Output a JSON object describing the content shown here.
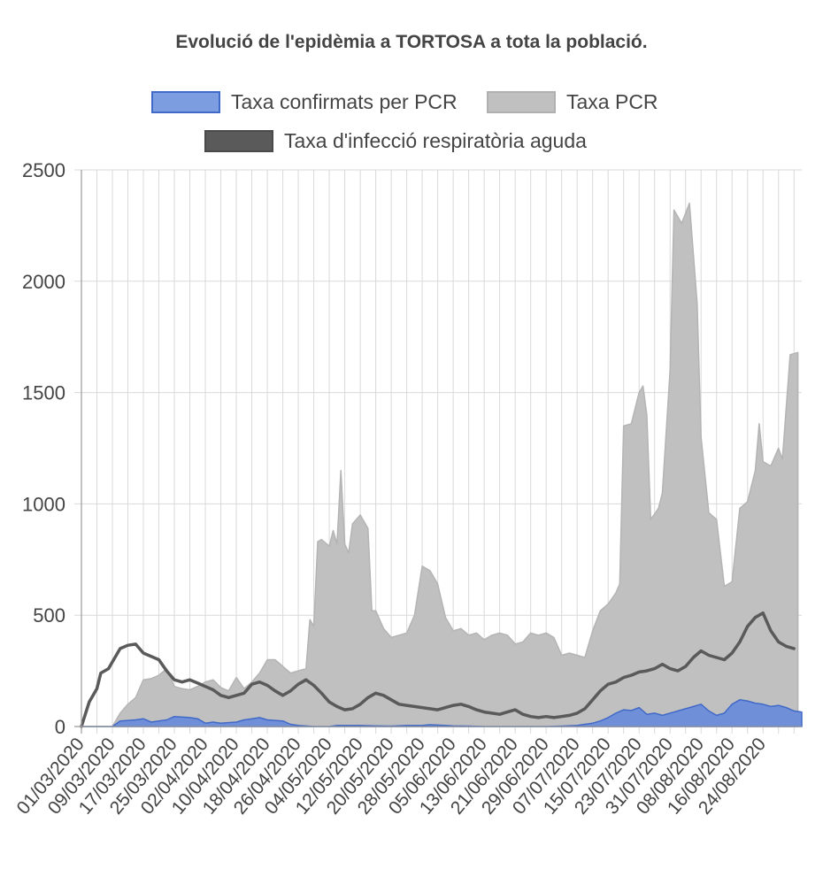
{
  "chart_data": {
    "type": "area",
    "title": "Evolució de l'epidèmia a TORTOSA a tota la població.",
    "xlabel": "",
    "ylabel": "",
    "ylim": [
      0,
      2500
    ],
    "y_ticks": [
      0,
      500,
      1000,
      1500,
      2000,
      2500
    ],
    "grid": true,
    "legend_position": "top",
    "x_tick_labels": [
      "01/03/2020",
      "09/03/2020",
      "17/03/2020",
      "25/03/2020",
      "02/04/2020",
      "10/04/2020",
      "18/04/2020",
      "26/04/2020",
      "04/05/2020",
      "12/05/2020",
      "20/05/2020",
      "28/05/2020",
      "05/06/2020",
      "13/06/2020",
      "21/06/2020",
      "29/06/2020",
      "07/07/2020",
      "15/07/2020",
      "23/07/2020",
      "31/07/2020",
      "08/08/2020",
      "16/08/2020",
      "24/08/2020"
    ],
    "x_tick_index": [
      0,
      8,
      16,
      24,
      32,
      40,
      48,
      56,
      64,
      72,
      80,
      88,
      96,
      104,
      112,
      120,
      128,
      136,
      144,
      152,
      160,
      168,
      176
    ],
    "series": [
      {
        "name": "Taxa confirmats per PCR",
        "color": "#4169c8",
        "fill": "#6f8fd8",
        "points": [
          [
            0,
            0
          ],
          [
            8,
            0
          ],
          [
            10,
            25
          ],
          [
            14,
            30
          ],
          [
            16,
            35
          ],
          [
            18,
            20
          ],
          [
            22,
            30
          ],
          [
            24,
            45
          ],
          [
            28,
            40
          ],
          [
            30,
            35
          ],
          [
            32,
            15
          ],
          [
            34,
            20
          ],
          [
            36,
            15
          ],
          [
            40,
            20
          ],
          [
            42,
            30
          ],
          [
            44,
            35
          ],
          [
            46,
            40
          ],
          [
            48,
            30
          ],
          [
            52,
            25
          ],
          [
            54,
            10
          ],
          [
            56,
            5
          ],
          [
            60,
            0
          ],
          [
            64,
            0
          ],
          [
            66,
            5
          ],
          [
            70,
            5
          ],
          [
            72,
            5
          ],
          [
            76,
            3
          ],
          [
            80,
            2
          ],
          [
            84,
            5
          ],
          [
            88,
            5
          ],
          [
            90,
            8
          ],
          [
            94,
            5
          ],
          [
            96,
            3
          ],
          [
            100,
            2
          ],
          [
            104,
            0
          ],
          [
            112,
            0
          ],
          [
            120,
            0
          ],
          [
            124,
            2
          ],
          [
            128,
            5
          ],
          [
            132,
            15
          ],
          [
            134,
            25
          ],
          [
            136,
            40
          ],
          [
            138,
            60
          ],
          [
            140,
            75
          ],
          [
            142,
            72
          ],
          [
            144,
            85
          ],
          [
            146,
            55
          ],
          [
            148,
            60
          ],
          [
            150,
            50
          ],
          [
            152,
            60
          ],
          [
            154,
            70
          ],
          [
            156,
            80
          ],
          [
            158,
            90
          ],
          [
            160,
            100
          ],
          [
            162,
            70
          ],
          [
            164,
            50
          ],
          [
            166,
            60
          ],
          [
            168,
            100
          ],
          [
            170,
            120
          ],
          [
            172,
            115
          ],
          [
            174,
            105
          ],
          [
            176,
            100
          ],
          [
            178,
            90
          ],
          [
            180,
            95
          ],
          [
            182,
            85
          ],
          [
            184,
            70
          ],
          [
            186,
            65
          ]
        ]
      },
      {
        "name": "Taxa PCR",
        "color": "#b4b4b4",
        "fill": "#c0c0c0",
        "points": [
          [
            0,
            0
          ],
          [
            8,
            0
          ],
          [
            10,
            60
          ],
          [
            12,
            100
          ],
          [
            14,
            130
          ],
          [
            16,
            210
          ],
          [
            18,
            215
          ],
          [
            20,
            230
          ],
          [
            22,
            260
          ],
          [
            24,
            180
          ],
          [
            26,
            170
          ],
          [
            28,
            165
          ],
          [
            30,
            180
          ],
          [
            32,
            200
          ],
          [
            34,
            210
          ],
          [
            36,
            175
          ],
          [
            38,
            160
          ],
          [
            40,
            220
          ],
          [
            42,
            170
          ],
          [
            44,
            200
          ],
          [
            46,
            240
          ],
          [
            48,
            300
          ],
          [
            50,
            300
          ],
          [
            52,
            270
          ],
          [
            54,
            240
          ],
          [
            56,
            250
          ],
          [
            58,
            260
          ],
          [
            59,
            480
          ],
          [
            60,
            450
          ],
          [
            61,
            830
          ],
          [
            62,
            840
          ],
          [
            64,
            810
          ],
          [
            65,
            880
          ],
          [
            66,
            820
          ],
          [
            67,
            1150
          ],
          [
            68,
            820
          ],
          [
            69,
            780
          ],
          [
            70,
            910
          ],
          [
            72,
            950
          ],
          [
            74,
            890
          ],
          [
            75,
            520
          ],
          [
            76,
            520
          ],
          [
            78,
            440
          ],
          [
            80,
            400
          ],
          [
            82,
            410
          ],
          [
            84,
            420
          ],
          [
            86,
            500
          ],
          [
            88,
            720
          ],
          [
            90,
            700
          ],
          [
            92,
            640
          ],
          [
            94,
            490
          ],
          [
            96,
            430
          ],
          [
            98,
            440
          ],
          [
            100,
            410
          ],
          [
            102,
            420
          ],
          [
            104,
            390
          ],
          [
            106,
            410
          ],
          [
            108,
            420
          ],
          [
            110,
            410
          ],
          [
            112,
            370
          ],
          [
            114,
            380
          ],
          [
            116,
            420
          ],
          [
            118,
            410
          ],
          [
            120,
            420
          ],
          [
            122,
            400
          ],
          [
            124,
            320
          ],
          [
            126,
            330
          ],
          [
            128,
            320
          ],
          [
            130,
            310
          ],
          [
            132,
            430
          ],
          [
            134,
            520
          ],
          [
            136,
            550
          ],
          [
            138,
            600
          ],
          [
            139,
            640
          ],
          [
            140,
            1350
          ],
          [
            142,
            1360
          ],
          [
            144,
            1500
          ],
          [
            145,
            1530
          ],
          [
            146,
            1400
          ],
          [
            147,
            930
          ],
          [
            149,
            980
          ],
          [
            150,
            1050
          ],
          [
            152,
            1600
          ],
          [
            153,
            2320
          ],
          [
            155,
            2260
          ],
          [
            157,
            2350
          ],
          [
            159,
            1900
          ],
          [
            160,
            1300
          ],
          [
            162,
            960
          ],
          [
            164,
            930
          ],
          [
            166,
            630
          ],
          [
            168,
            650
          ],
          [
            170,
            980
          ],
          [
            172,
            1010
          ],
          [
            174,
            1150
          ],
          [
            175,
            1360
          ],
          [
            176,
            1190
          ],
          [
            178,
            1170
          ],
          [
            180,
            1250
          ],
          [
            181,
            1200
          ],
          [
            183,
            1670
          ],
          [
            185,
            1680
          ]
        ]
      },
      {
        "name": "Taxa d'infecció respiratòria aguda",
        "color": "#5a5a5a",
        "fill": "#5a5a5a",
        "points": [
          [
            0,
            0
          ],
          [
            2,
            110
          ],
          [
            4,
            170
          ],
          [
            5,
            240
          ],
          [
            7,
            260
          ],
          [
            8,
            290
          ],
          [
            10,
            350
          ],
          [
            12,
            365
          ],
          [
            14,
            370
          ],
          [
            16,
            330
          ],
          [
            18,
            315
          ],
          [
            20,
            300
          ],
          [
            22,
            250
          ],
          [
            24,
            210
          ],
          [
            26,
            200
          ],
          [
            28,
            210
          ],
          [
            30,
            195
          ],
          [
            32,
            180
          ],
          [
            34,
            165
          ],
          [
            36,
            140
          ],
          [
            38,
            130
          ],
          [
            40,
            140
          ],
          [
            42,
            150
          ],
          [
            44,
            190
          ],
          [
            46,
            200
          ],
          [
            48,
            185
          ],
          [
            50,
            160
          ],
          [
            52,
            140
          ],
          [
            54,
            160
          ],
          [
            56,
            190
          ],
          [
            58,
            210
          ],
          [
            60,
            185
          ],
          [
            62,
            150
          ],
          [
            64,
            110
          ],
          [
            66,
            90
          ],
          [
            68,
            75
          ],
          [
            70,
            80
          ],
          [
            72,
            100
          ],
          [
            74,
            130
          ],
          [
            76,
            150
          ],
          [
            78,
            140
          ],
          [
            80,
            120
          ],
          [
            82,
            100
          ],
          [
            84,
            95
          ],
          [
            86,
            90
          ],
          [
            88,
            85
          ],
          [
            90,
            80
          ],
          [
            92,
            75
          ],
          [
            94,
            85
          ],
          [
            96,
            95
          ],
          [
            98,
            100
          ],
          [
            100,
            90
          ],
          [
            102,
            75
          ],
          [
            104,
            65
          ],
          [
            106,
            60
          ],
          [
            108,
            55
          ],
          [
            110,
            65
          ],
          [
            112,
            75
          ],
          [
            114,
            55
          ],
          [
            116,
            45
          ],
          [
            118,
            40
          ],
          [
            120,
            45
          ],
          [
            122,
            40
          ],
          [
            124,
            45
          ],
          [
            126,
            50
          ],
          [
            128,
            60
          ],
          [
            130,
            80
          ],
          [
            132,
            120
          ],
          [
            134,
            160
          ],
          [
            136,
            190
          ],
          [
            138,
            200
          ],
          [
            140,
            220
          ],
          [
            142,
            230
          ],
          [
            144,
            245
          ],
          [
            146,
            250
          ],
          [
            148,
            260
          ],
          [
            150,
            280
          ],
          [
            152,
            260
          ],
          [
            154,
            250
          ],
          [
            156,
            270
          ],
          [
            158,
            310
          ],
          [
            160,
            340
          ],
          [
            162,
            320
          ],
          [
            164,
            310
          ],
          [
            166,
            300
          ],
          [
            168,
            330
          ],
          [
            170,
            380
          ],
          [
            172,
            450
          ],
          [
            174,
            490
          ],
          [
            176,
            510
          ],
          [
            178,
            430
          ],
          [
            180,
            380
          ],
          [
            182,
            360
          ],
          [
            184,
            350
          ]
        ]
      }
    ]
  }
}
